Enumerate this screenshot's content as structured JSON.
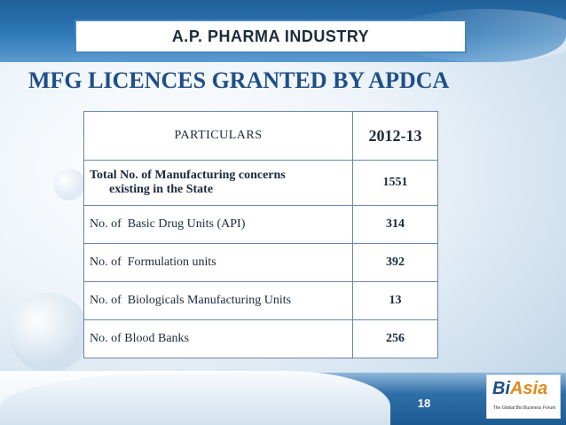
{
  "slide": {
    "header_box": "A.P. PHARMA INDUSTRY",
    "heading": "MFG LICENCES GRANTED BY APDCA",
    "page_number": "18"
  },
  "table": {
    "columns": [
      "PARTICULARS",
      "2012-13"
    ],
    "rows": [
      {
        "label_line1": "Total No. of Manufacturing concerns",
        "label_line2": "existing in the State",
        "value": "1551"
      },
      {
        "label": "No. of  Basic Drug Units (API)",
        "value": "314"
      },
      {
        "label": "No. of  Formulation units",
        "value": "392"
      },
      {
        "label": "No. of  Biologicals Manufacturing Units",
        "value": "13"
      },
      {
        "label": "No. of Blood Banks",
        "value": "256"
      }
    ]
  },
  "logo": {
    "wordmark_b": "Bi",
    "wordmark_a": "Asia",
    "tagline": "The Global Bio Business Forum"
  },
  "colors": {
    "heading": "#1f4f86",
    "band": "#2d78b6",
    "table_border": "#6a86a8"
  }
}
